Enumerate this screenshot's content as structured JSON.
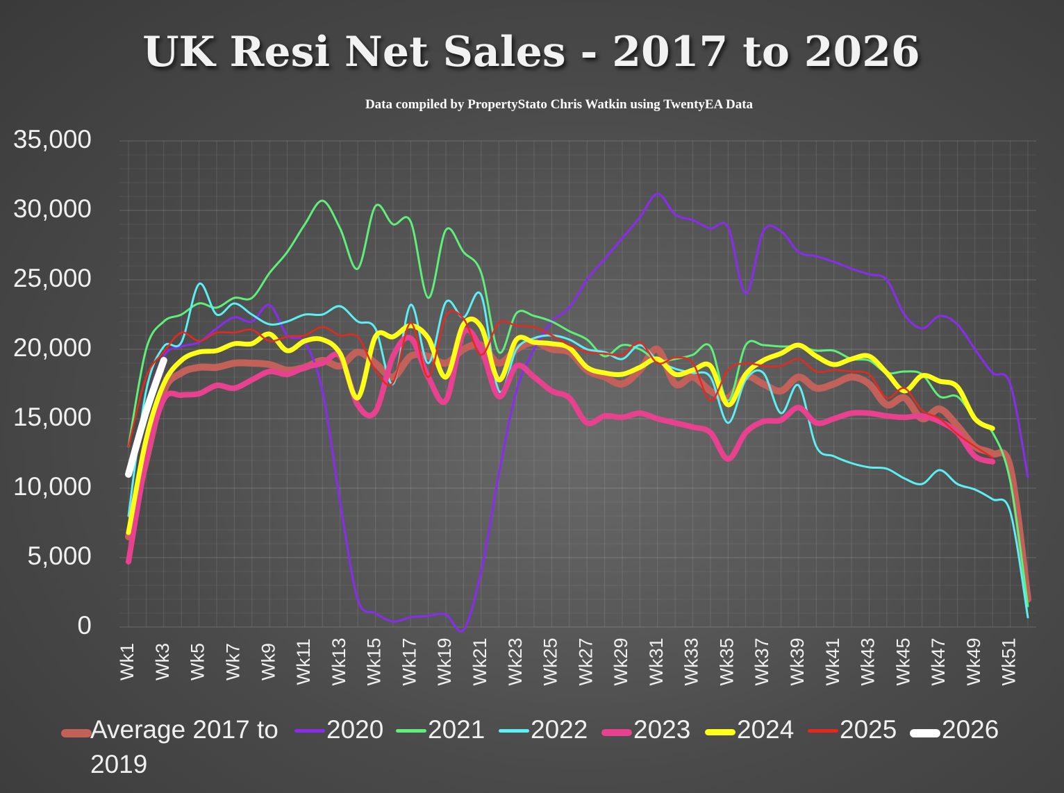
{
  "chart_data": {
    "type": "line",
    "title": "UK  Resi Net Sales - 2017 to 2026",
    "subtitle": "Data compiled by PropertyStato Chris Watkin using TwentyEA Data",
    "categories": [
      "Wk1",
      null,
      "Wk3",
      null,
      "Wk5",
      null,
      "Wk7",
      null,
      "Wk9",
      null,
      "Wk11",
      null,
      "Wk13",
      null,
      "Wk15",
      null,
      "Wk17",
      null,
      "Wk19",
      null,
      "Wk21",
      null,
      "Wk23",
      null,
      "Wk25",
      null,
      "Wk27",
      null,
      "Wk29",
      null,
      "Wk31",
      null,
      "Wk33",
      null,
      "Wk35",
      null,
      "Wk37",
      null,
      "Wk39",
      null,
      "Wk41",
      null,
      "Wk43",
      null,
      "Wk45",
      null,
      "Wk47",
      null,
      "Wk49",
      null,
      "Wk51",
      null
    ],
    "ylim": [
      0,
      35000
    ],
    "yticks": [
      0,
      {
        "value": 5000,
        "label": "5,000"
      },
      {
        "value": 10000,
        "label": "10,000"
      },
      {
        "value": 15000,
        "label": "15,000"
      },
      {
        "value": 20000,
        "label": "20,000"
      },
      {
        "value": 25000,
        "label": "25,000"
      },
      {
        "value": 30000,
        "label": "30,000"
      },
      {
        "value": 35000,
        "label": "35,000"
      }
    ],
    "grid": true,
    "legend": "bottom",
    "series": [
      {
        "name": "Average 2017 to 2019",
        "color": "#c2605a",
        "values": [
          6500,
          12000,
          17000,
          18300,
          18700,
          18700,
          19000,
          19000,
          18900,
          18500,
          18700,
          19200,
          18800,
          19800,
          19000,
          18000,
          19500,
          19500,
          19000,
          20000,
          20300,
          19000,
          20000,
          20500,
          20000,
          19800,
          18500,
          18000,
          17500,
          18500,
          20000,
          17500,
          18000,
          17000,
          16500,
          18000,
          17500,
          17000,
          18000,
          17200,
          17500,
          18000,
          17500,
          16000,
          16500,
          15000,
          15700,
          14500,
          13000,
          12500,
          11500,
          2000
        ]
      },
      {
        "name": "2020",
        "color": "#8a2cf0",
        "values": [
          11000,
          16000,
          19500,
          20200,
          20500,
          21500,
          22300,
          22000,
          23200,
          21000,
          20500,
          17000,
          9000,
          2000,
          1000,
          400,
          700,
          800,
          900,
          -200,
          4000,
          11000,
          17000,
          20000,
          22000,
          23000,
          25000,
          26500,
          28000,
          29500,
          31200,
          29700,
          29300,
          28700,
          28800,
          24000,
          28500,
          28500,
          27000,
          26700,
          26300,
          25800,
          25400,
          25000,
          22500,
          21500,
          22400,
          21800,
          20000,
          18300,
          17500,
          10800
        ]
      },
      {
        "name": "2021",
        "color": "#5ef07a",
        "values": [
          13000,
          20000,
          22000,
          22500,
          23300,
          23000,
          23700,
          23700,
          25500,
          27000,
          29000,
          30700,
          28700,
          25800,
          30300,
          29000,
          29200,
          23700,
          28600,
          27000,
          25500,
          19800,
          22600,
          22400,
          22000,
          21300,
          20700,
          19500,
          20300,
          20000,
          19200,
          19300,
          19600,
          20200,
          16300,
          20300,
          20300,
          20200,
          20200,
          19900,
          19900,
          19300,
          19200,
          18300,
          18400,
          18200,
          16600,
          16600,
          15000,
          14000,
          10500,
          1500
        ]
      },
      {
        "name": "2022",
        "color": "#5cf0f5",
        "values": [
          8000,
          17000,
          20200,
          20500,
          24700,
          22500,
          23300,
          22500,
          21800,
          22000,
          22500,
          22500,
          23100,
          22000,
          21500,
          17500,
          23200,
          19000,
          23400,
          22300,
          23900,
          17000,
          20000,
          20800,
          21000,
          20700,
          20000,
          19800,
          19300,
          20300,
          19200,
          18600,
          18300,
          18000,
          14700,
          17800,
          18300,
          15400,
          17400,
          13000,
          12300,
          11800,
          11500,
          11400,
          10700,
          10300,
          11300,
          10300,
          9900,
          9200,
          8300,
          700
        ]
      },
      {
        "name": "2023",
        "color": "#e8418f",
        "values": [
          4700,
          12000,
          16400,
          16700,
          16800,
          17400,
          17200,
          17800,
          18400,
          18200,
          18700,
          19000,
          19500,
          16000,
          15500,
          19500,
          20800,
          18000,
          16300,
          21200,
          20000,
          16600,
          18800,
          18000,
          17000,
          16500,
          14700,
          15200,
          15100,
          15400,
          15000,
          14700,
          14400,
          14000,
          12100,
          14000,
          14800,
          14900,
          15800,
          14700,
          15000,
          15400,
          15400,
          15200,
          15100,
          15200,
          14800,
          14000,
          12300,
          11900,
          null,
          null
        ]
      },
      {
        "name": "2024",
        "color": "#ffff1a",
        "values": [
          6800,
          13500,
          17500,
          19200,
          19800,
          19900,
          20400,
          20400,
          21100,
          19900,
          20600,
          20700,
          19700,
          16500,
          20900,
          20900,
          21700,
          20800,
          18000,
          21800,
          21600,
          17800,
          20700,
          20500,
          20400,
          20100,
          18700,
          18300,
          18200,
          18700,
          19300,
          18200,
          18500,
          18800,
          16000,
          18200,
          19200,
          19700,
          20300,
          19500,
          18900,
          19300,
          19500,
          18300,
          17000,
          18100,
          17700,
          17300,
          15000,
          14300,
          null,
          null
        ]
      },
      {
        "name": "2025",
        "color": "#e8281e",
        "values": [
          13000,
          18000,
          19800,
          21200,
          20600,
          21200,
          21200,
          21400,
          20600,
          20900,
          21000,
          21600,
          21000,
          20900,
          18500,
          17600,
          21900,
          18000,
          22400,
          22200,
          19600,
          21900,
          21700,
          21600,
          21000,
          20300,
          19800,
          19700,
          19600,
          20500,
          19000,
          19400,
          19000,
          16300,
          18500,
          19000,
          18800,
          18800,
          19300,
          18400,
          18500,
          18400,
          18200,
          16500,
          17200,
          15600,
          15000,
          13900,
          13000,
          12200,
          null,
          null
        ]
      },
      {
        "name": "2026",
        "color": "#ffffff",
        "values": [
          11000,
          15500,
          19200,
          null,
          null,
          null,
          null,
          null,
          null,
          null,
          null,
          null,
          null,
          null,
          null,
          null,
          null,
          null,
          null,
          null,
          null,
          null,
          null,
          null,
          null,
          null,
          null,
          null,
          null,
          null,
          null,
          null,
          null,
          null,
          null,
          null,
          null,
          null,
          null,
          null,
          null,
          null,
          null,
          null,
          null,
          null,
          null,
          null,
          null,
          null,
          null,
          null
        ]
      }
    ]
  }
}
